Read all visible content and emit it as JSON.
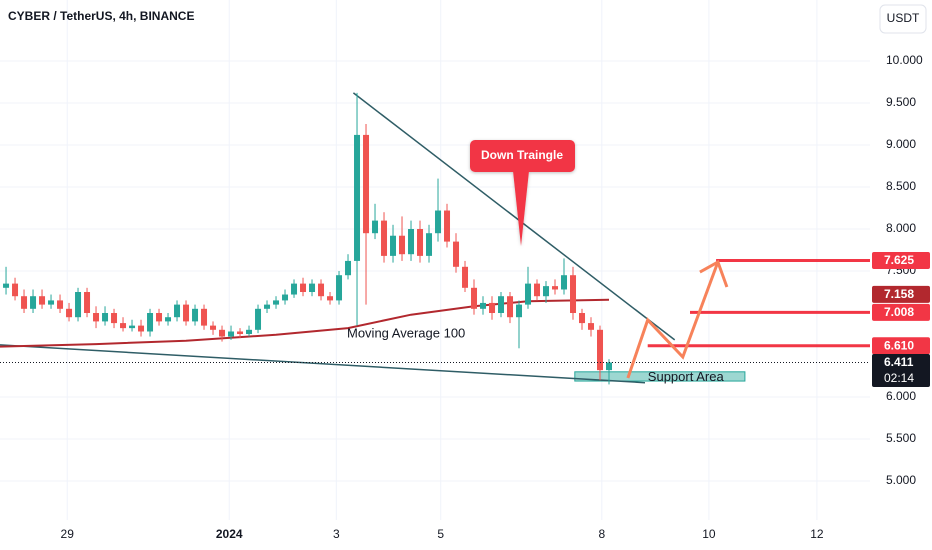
{
  "chart_data": {
    "type": "candlestick",
    "title": "CYBER / TetherUS, 4h, BINANCE",
    "currency": "USDT",
    "x": [
      0,
      1,
      2,
      3,
      4,
      5,
      6,
      7,
      8,
      9,
      10,
      11,
      12,
      13,
      14,
      15,
      16,
      17,
      18,
      19,
      20,
      21,
      22,
      23,
      24,
      25,
      26,
      27,
      28,
      29,
      30,
      31,
      32,
      33,
      34,
      35,
      36,
      37,
      38,
      39,
      40,
      41,
      42,
      43,
      44,
      45,
      46,
      47,
      48,
      49,
      50,
      51,
      52,
      53,
      54,
      55,
      56,
      57,
      58,
      59,
      60,
      61,
      62,
      63,
      64,
      65,
      66,
      67
    ],
    "open": [
      7.3,
      7.35,
      7.2,
      7.05,
      7.2,
      7.1,
      7.15,
      7.05,
      6.95,
      7.25,
      7.0,
      6.9,
      7.0,
      6.88,
      6.82,
      6.85,
      6.78,
      7.0,
      6.9,
      6.95,
      7.1,
      6.9,
      7.05,
      6.85,
      6.8,
      6.72,
      6.78,
      6.75,
      6.8,
      7.05,
      7.1,
      7.15,
      7.22,
      7.35,
      7.25,
      7.35,
      7.2,
      7.15,
      7.45,
      7.62,
      9.12,
      7.95,
      8.1,
      7.68,
      7.92,
      7.7,
      8.0,
      7.68,
      7.95,
      8.22,
      7.85,
      7.55,
      7.3,
      7.05,
      7.12,
      7.0,
      7.2,
      6.95,
      7.1,
      7.35,
      7.2,
      7.32,
      7.28,
      7.45,
      7.0,
      6.88,
      6.8,
      6.32
    ],
    "high": [
      7.55,
      7.42,
      7.28,
      7.28,
      7.28,
      7.22,
      7.22,
      7.12,
      7.3,
      7.3,
      7.08,
      7.08,
      7.05,
      6.95,
      6.92,
      6.92,
      7.05,
      7.05,
      7.0,
      7.15,
      7.15,
      7.1,
      7.1,
      6.9,
      6.85,
      6.85,
      6.82,
      6.85,
      7.1,
      7.15,
      7.2,
      7.28,
      7.4,
      7.42,
      7.4,
      7.4,
      7.25,
      7.5,
      7.7,
      9.62,
      9.25,
      8.3,
      8.2,
      8.05,
      8.15,
      8.1,
      8.1,
      8.05,
      8.6,
      8.3,
      7.95,
      7.62,
      7.4,
      7.2,
      7.2,
      7.25,
      7.25,
      7.15,
      7.55,
      7.4,
      7.38,
      7.4,
      7.65,
      7.55,
      7.05,
      6.95,
      6.85,
      6.45
    ],
    "low": [
      7.22,
      7.15,
      7.0,
      7.0,
      7.05,
      7.05,
      7.0,
      6.9,
      6.9,
      6.95,
      6.82,
      6.85,
      6.82,
      6.78,
      6.78,
      6.72,
      6.72,
      6.85,
      6.85,
      6.9,
      6.85,
      6.85,
      6.8,
      6.74,
      6.66,
      6.68,
      6.7,
      6.72,
      6.76,
      7.0,
      7.05,
      7.1,
      7.18,
      7.2,
      7.2,
      7.15,
      7.1,
      7.1,
      7.4,
      6.85,
      7.1,
      7.88,
      7.6,
      7.6,
      7.62,
      7.62,
      7.6,
      7.6,
      7.85,
      7.78,
      7.48,
      7.25,
      6.98,
      6.98,
      6.92,
      6.95,
      6.88,
      6.58,
      7.05,
      7.15,
      7.12,
      7.22,
      7.22,
      6.92,
      6.8,
      6.72,
      6.2,
      6.15
    ],
    "close": [
      7.35,
      7.2,
      7.05,
      7.2,
      7.1,
      7.15,
      7.05,
      6.95,
      7.25,
      7.0,
      6.9,
      7.0,
      6.88,
      6.82,
      6.85,
      6.78,
      7.0,
      6.9,
      6.95,
      7.1,
      6.9,
      7.05,
      6.85,
      6.8,
      6.72,
      6.78,
      6.75,
      6.8,
      7.05,
      7.1,
      7.15,
      7.22,
      7.35,
      7.25,
      7.35,
      7.2,
      7.15,
      7.45,
      7.62,
      9.12,
      7.95,
      8.1,
      7.68,
      7.92,
      7.7,
      8.0,
      7.68,
      7.95,
      8.22,
      7.85,
      7.55,
      7.3,
      7.05,
      7.12,
      7.0,
      7.2,
      6.95,
      7.1,
      7.35,
      7.2,
      7.32,
      7.28,
      7.45,
      7.0,
      6.88,
      6.8,
      6.32,
      6.411
    ],
    "up_color": "#26a69a",
    "down_color": "#ef5350",
    "xlim": [
      -0.67,
      96
    ],
    "ylim": [
      4.536,
      10.726
    ],
    "xticks": [
      {
        "value": 6.8,
        "label": "29"
      },
      {
        "value": 24.8,
        "label": "2024"
      },
      {
        "value": 36.7,
        "label": "3"
      },
      {
        "value": 48.3,
        "label": "5"
      },
      {
        "value": 66.2,
        "label": "8"
      },
      {
        "value": 78.1,
        "label": "10"
      },
      {
        "value": 90.1,
        "label": "12"
      }
    ],
    "yticks": [
      {
        "value": 10,
        "label": "10.000"
      },
      {
        "value": 9.5,
        "label": "9.500"
      },
      {
        "value": 9,
        "label": "9.000"
      },
      {
        "value": 8.5,
        "label": "8.500"
      },
      {
        "value": 8,
        "label": "8.000"
      },
      {
        "value": 7.5,
        "label": "7.500"
      },
      {
        "value": 6,
        "label": "6.000"
      },
      {
        "value": 5.5,
        "label": "5.500"
      },
      {
        "value": 5,
        "label": "5.000"
      }
    ],
    "grid": true,
    "moving_average": {
      "name": "Moving Average 100",
      "color": "#b2282e",
      "x": [
        -0.67,
        10,
        20,
        30,
        38,
        45,
        52,
        58,
        67
      ],
      "values": [
        6.6,
        6.63,
        6.67,
        6.74,
        6.82,
        6.98,
        7.08,
        7.14,
        7.158
      ],
      "last_label": "7.158"
    },
    "trendlines": [
      {
        "x": [
          38.6,
          74.3
        ],
        "values": [
          9.62,
          6.68
        ]
      },
      {
        "x": [
          -0.67,
          71
        ],
        "values": [
          6.62,
          6.17
        ]
      }
    ],
    "support_area": {
      "label": "Support Area",
      "x": [
        63.2,
        82.1
      ],
      "values": [
        6.3,
        6.19
      ]
    },
    "levels": [
      {
        "value": 7.625,
        "label": "7.625",
        "start": 78.9
      },
      {
        "value": 7.008,
        "label": "7.008",
        "start": 76
      },
      {
        "value": 6.61,
        "label": "6.610",
        "start": 71.3
      }
    ],
    "projection": {
      "x": [
        69.1,
        71.3,
        75.2,
        79.1
      ],
      "values": [
        6.226,
        6.917,
        6.476,
        7.607
      ]
    },
    "last_price": {
      "value": 6.411,
      "label": "6.411",
      "timer": "02:14"
    },
    "annotation": "Down Traingle"
  }
}
